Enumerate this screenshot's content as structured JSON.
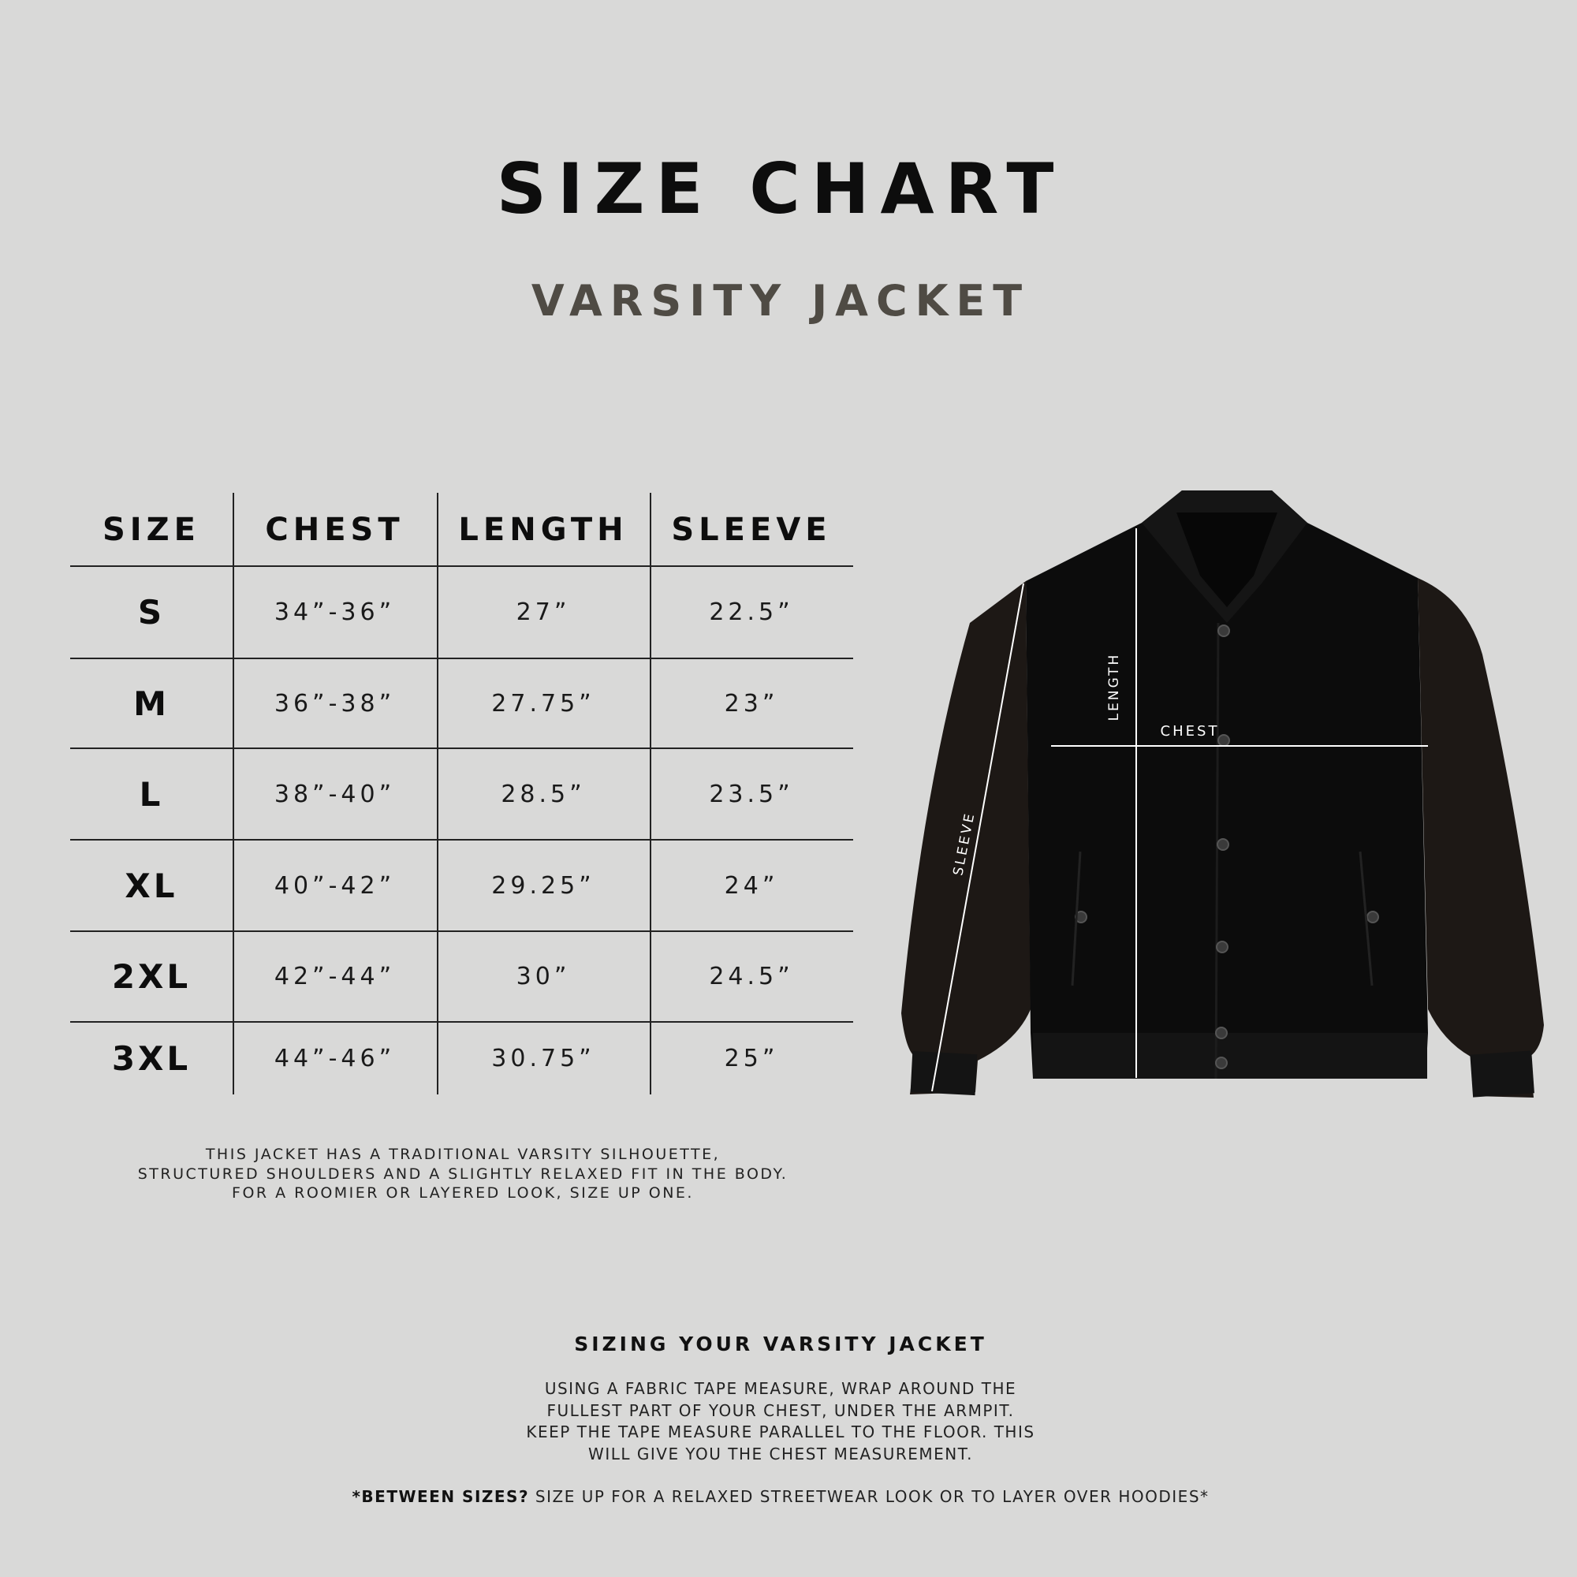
{
  "header": {
    "title": "SIZE CHART",
    "subtitle": "VARSITY JACKET"
  },
  "table": {
    "columns": [
      "SIZE",
      "CHEST",
      "LENGTH",
      "SLEEVE"
    ],
    "rows": [
      [
        "S",
        "34”-36”",
        "27”",
        "22.5”"
      ],
      [
        "M",
        "36”-38”",
        "27.75”",
        "23”"
      ],
      [
        "L",
        "38”-40”",
        "28.5”",
        "23.5”"
      ],
      [
        "XL",
        "40”-42”",
        "29.25”",
        "24”"
      ],
      [
        "2XL",
        "42”-44”",
        "30”",
        "24.5”"
      ],
      [
        "3XL",
        "44”-46”",
        "30.75”",
        "25”"
      ]
    ]
  },
  "fit_note": [
    "THIS JACKET HAS A TRADITIONAL VARSITY SILHOUETTE,",
    "STRUCTURED SHOULDERS AND A SLIGHTLY RELAXED FIT IN THE BODY.",
    "FOR A ROOMIER OR LAYERED LOOK, SIZE UP ONE."
  ],
  "diagram": {
    "length_label": "LENGTH",
    "chest_label": "CHEST",
    "sleeve_label": "SLEEVE",
    "jacket_body_color": "#0b0b0b",
    "sleeve_color": "#1c1714"
  },
  "how_to": {
    "title": "SIZING YOUR VARSITY JACKET",
    "lines": [
      "USING A FABRIC TAPE MEASURE, WRAP AROUND THE",
      "FULLEST PART OF YOUR CHEST, UNDER THE ARMPIT.",
      "KEEP THE TAPE MEASURE PARALLEL TO THE FLOOR. THIS",
      "WILL GIVE YOU THE CHEST MEASUREMENT."
    ],
    "footnote_bold": "*BETWEEN SIZES?",
    "footnote_rest": " SIZE UP FOR A RELAXED STREETWEAR LOOK OR TO LAYER OVER HOODIES*"
  }
}
